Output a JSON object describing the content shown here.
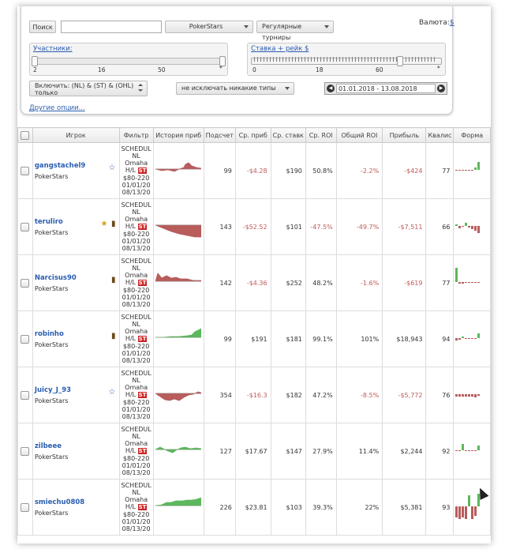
{
  "toolbar": {
    "search_label": "Поиск",
    "search_value": "",
    "site_select": "PokerStars",
    "type_select": "Регулярные турниры",
    "currency_label": "Валюта:",
    "currency_value": "$"
  },
  "participants": {
    "label": "Участники:",
    "ticks": [
      "2",
      "16",
      "50",
      "*"
    ]
  },
  "stake": {
    "label": "Ставка + рейк",
    "currency": "$",
    "ticks": [
      "0",
      "18",
      "60",
      "*"
    ]
  },
  "include": {
    "line1": "Включить: (NL) & (ST) & (OHL)",
    "line2": "только"
  },
  "exclude_select": "не исключать никакие типы",
  "date_range": "01.01.2018 - 13.08.2018",
  "more_options": "Другие опции...",
  "columns": [
    "Игрок",
    "Фильтр",
    "История приб",
    "Подсчет",
    "Ср. приб",
    "Ср. ставк",
    "Ср. ROI",
    "Общий ROI",
    "Прибыль",
    "Квалис",
    "Форма"
  ],
  "filter_lines": [
    "SCHEDUL",
    "NL",
    "Omaha",
    "H/L",
    "$80-220",
    "01/01/20",
    "08/13/20"
  ],
  "filter_badge": "ST",
  "rows": [
    {
      "name": "gangstachel9",
      "site": "PokerStars",
      "icon": "star-outline",
      "count": "99",
      "avg_profit": "-$4.28",
      "avg_stake": "$190",
      "avg_roi": "50.8%",
      "total_roi": "-2.2%",
      "profit": "-$424",
      "quality": "77"
    },
    {
      "name": "teruliro",
      "site": "PokerStars",
      "icon": "star-gold",
      "count": "143",
      "avg_profit": "-$52.52",
      "avg_stake": "$101",
      "avg_roi": "-47.5%",
      "total_roi": "-49.7%",
      "profit": "-$7,511",
      "quality": "66"
    },
    {
      "name": "Narcisus90",
      "site": "PokerStars",
      "icon": "bottle",
      "count": "142",
      "avg_profit": "-$4.36",
      "avg_stake": "$252",
      "avg_roi": "48.2%",
      "total_roi": "-1.6%",
      "profit": "-$619",
      "quality": "77"
    },
    {
      "name": "robinho",
      "site": "PokerStars",
      "icon": "bottle",
      "count": "99",
      "avg_profit": "$191",
      "avg_stake": "$181",
      "avg_roi": "99.1%",
      "total_roi": "101%",
      "profit": "$18,943",
      "quality": "94"
    },
    {
      "name": "Juicy_J_93",
      "site": "PokerStars",
      "icon": "star-outline",
      "count": "354",
      "avg_profit": "-$16.3",
      "avg_stake": "$182",
      "avg_roi": "47.2%",
      "total_roi": "-8.5%",
      "profit": "-$5,772",
      "quality": "76"
    },
    {
      "name": "zilbeee",
      "site": "PokerStars",
      "icon": "",
      "count": "127",
      "avg_profit": "$17.67",
      "avg_stake": "$147",
      "avg_roi": "27.9%",
      "total_roi": "11.4%",
      "profit": "$2,244",
      "quality": "92"
    },
    {
      "name": "smiechu0808",
      "site": "PokerStars",
      "icon": "",
      "count": "226",
      "avg_profit": "$23.81",
      "avg_stake": "$103",
      "avg_roi": "39.3%",
      "total_roi": "22%",
      "profit": "$5,381",
      "quality": "93"
    }
  ],
  "colors": {
    "positive": "#5cb85c",
    "negative": "#b85c5c",
    "link": "#2a5db0"
  }
}
